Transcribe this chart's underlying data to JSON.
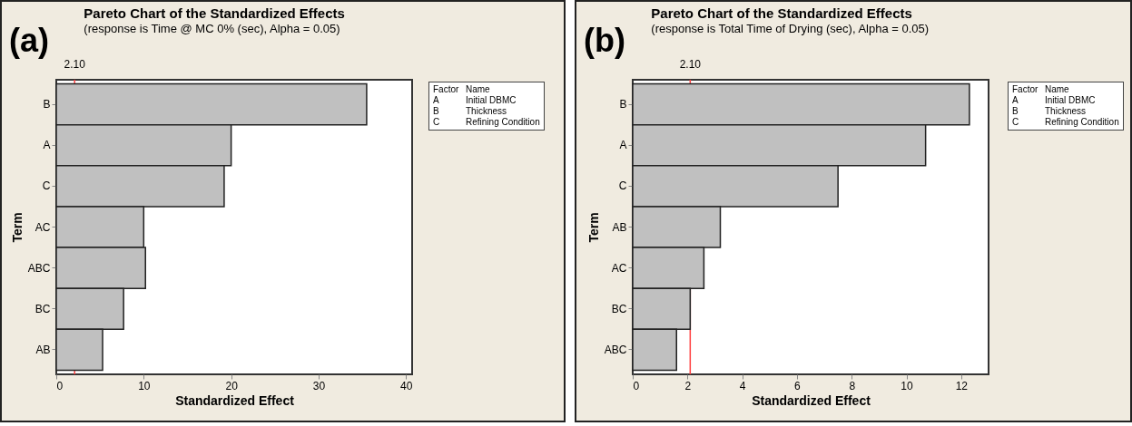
{
  "chart_data": [
    {
      "type": "bar",
      "orientation": "horizontal",
      "title": "Pareto Chart of the Standardized Effects",
      "subtitle": "(response is Time @ MC 0% (sec), Alpha = 0.05)",
      "xlabel": "Standardized Effect",
      "ylabel": "Term",
      "categories": [
        "B",
        "A",
        "C",
        "AC",
        "ABC",
        "BC",
        "AB"
      ],
      "values": [
        35.5,
        20.0,
        19.2,
        10.0,
        10.2,
        7.7,
        5.3
      ],
      "color": "#c0c0c0",
      "xlim": [
        0,
        40.7
      ],
      "xticks": [
        0,
        10,
        20,
        30,
        40
      ],
      "grid": false,
      "ref_lines": [
        {
          "axis": "x",
          "value": 2.1,
          "label": "2.10",
          "color": "#ff4040"
        }
      ],
      "annotations": [
        "(a)",
        "Factor",
        "Name",
        "A",
        "Initial DBMC",
        "B",
        "Thickness",
        "C",
        "Refining Condition"
      ]
    },
    {
      "type": "bar",
      "orientation": "horizontal",
      "title": "Pareto Chart of the Standardized Effects",
      "subtitle": "(response is Total Time of Drying (sec), Alpha = 0.05)",
      "xlabel": "Standardized Effect",
      "ylabel": "Term",
      "categories": [
        "B",
        "A",
        "C",
        "AB",
        "AC",
        "BC",
        "ABC"
      ],
      "values": [
        12.3,
        10.7,
        7.5,
        3.2,
        2.6,
        2.1,
        1.6
      ],
      "color": "#c0c0c0",
      "xlim": [
        0,
        13.0
      ],
      "xticks": [
        0,
        2,
        4,
        6,
        8,
        10,
        12
      ],
      "grid": false,
      "ref_lines": [
        {
          "axis": "x",
          "value": 2.1,
          "label": "2.10",
          "color": "#ff4040"
        }
      ],
      "annotations": [
        "(b)",
        "Factor",
        "Name",
        "A",
        "Initial DBMC",
        "B",
        "Thickness",
        "C",
        "Refining Condition"
      ]
    }
  ]
}
